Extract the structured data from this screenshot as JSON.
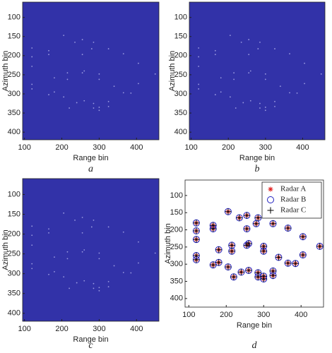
{
  "chart_data": [
    {
      "type": "image",
      "caption": "a",
      "xlabel": "Range bin",
      "ylabel": "Azimuth bin",
      "xlim": [
        95,
        460
      ],
      "ylim": [
        60,
        420
      ],
      "y_inverted": true,
      "xticks": [
        100,
        200,
        300,
        400
      ],
      "yticks": [
        100,
        150,
        200,
        250,
        300,
        350,
        400
      ],
      "background": "#3232a8",
      "color": "#9a9ae0",
      "x": [
        120,
        120,
        120,
        120,
        120,
        165,
        165,
        165,
        180,
        180,
        205,
        205,
        215,
        215,
        220,
        235,
        240,
        255,
        255,
        255,
        260,
        260,
        280,
        285,
        285,
        285,
        300,
        300,
        300,
        300,
        325,
        325,
        325,
        340,
        365,
        365,
        385,
        405,
        405,
        450
      ],
      "values": [
        180,
        203,
        228,
        275,
        287,
        187,
        197,
        302,
        258,
        295,
        147,
        308,
        245,
        262,
        337,
        165,
        323,
        158,
        197,
        245,
        240,
        318,
        182,
        165,
        325,
        337,
        248,
        262,
        335,
        343,
        182,
        320,
        333,
        280,
        195,
        297,
        298,
        220,
        273,
        248
      ]
    },
    {
      "type": "image",
      "caption": "b",
      "xlabel": "Range bin",
      "ylabel": "Azimuth bin",
      "xlim": [
        95,
        460
      ],
      "ylim": [
        60,
        420
      ],
      "y_inverted": true,
      "xticks": [
        100,
        200,
        300,
        400
      ],
      "yticks": [
        100,
        150,
        200,
        250,
        300,
        350,
        400
      ],
      "background": "#3232a8",
      "color": "#9a9ae0",
      "x": [
        120,
        120,
        120,
        120,
        120,
        165,
        165,
        165,
        180,
        180,
        205,
        205,
        215,
        215,
        220,
        235,
        240,
        255,
        255,
        255,
        260,
        260,
        280,
        285,
        285,
        285,
        300,
        300,
        300,
        300,
        325,
        325,
        325,
        340,
        365,
        365,
        385,
        405,
        405,
        450
      ],
      "values": [
        180,
        203,
        228,
        275,
        287,
        187,
        197,
        302,
        258,
        295,
        147,
        308,
        245,
        262,
        337,
        165,
        323,
        158,
        197,
        245,
        240,
        318,
        182,
        165,
        325,
        337,
        248,
        262,
        335,
        343,
        182,
        320,
        333,
        280,
        195,
        297,
        298,
        220,
        273,
        248
      ]
    },
    {
      "type": "image",
      "caption": "c",
      "xlabel": "Range bin",
      "ylabel": "Azimuth bin",
      "xlim": [
        95,
        460
      ],
      "ylim": [
        60,
        420
      ],
      "y_inverted": true,
      "xticks": [
        100,
        200,
        300,
        400
      ],
      "yticks": [
        100,
        150,
        200,
        250,
        300,
        350,
        400
      ],
      "background": "#3232a8",
      "color": "#9a9ae0",
      "x": [
        120,
        120,
        120,
        120,
        120,
        165,
        165,
        165,
        180,
        180,
        205,
        205,
        215,
        215,
        220,
        235,
        240,
        255,
        255,
        255,
        260,
        260,
        280,
        285,
        285,
        285,
        300,
        300,
        300,
        300,
        325,
        325,
        325,
        340,
        365,
        365,
        385,
        405,
        405,
        450
      ],
      "values": [
        180,
        203,
        228,
        275,
        287,
        187,
        197,
        302,
        258,
        295,
        147,
        308,
        245,
        262,
        337,
        165,
        323,
        158,
        197,
        245,
        240,
        318,
        182,
        165,
        325,
        337,
        248,
        262,
        335,
        343,
        182,
        320,
        333,
        280,
        195,
        297,
        298,
        220,
        273,
        248
      ]
    },
    {
      "type": "scatter",
      "caption": "d",
      "xlabel": "Range bin",
      "ylabel": "Azimuth bin",
      "xlim": [
        90,
        460
      ],
      "ylim": [
        55,
        425
      ],
      "y_inverted": true,
      "xticks": [
        100,
        200,
        300,
        400
      ],
      "yticks": [
        100,
        150,
        200,
        250,
        300,
        350,
        400
      ],
      "legend": "upper right",
      "x": [
        120,
        120,
        120,
        120,
        120,
        165,
        165,
        165,
        180,
        180,
        205,
        205,
        215,
        215,
        220,
        235,
        240,
        255,
        255,
        255,
        260,
        260,
        280,
        285,
        285,
        285,
        300,
        300,
        300,
        300,
        325,
        325,
        325,
        340,
        365,
        365,
        385,
        405,
        405,
        450
      ],
      "series": [
        {
          "name": "Radar A",
          "color": "#e02020",
          "marker": "asterisk",
          "values": [
            180,
            203,
            228,
            275,
            287,
            187,
            197,
            302,
            258,
            295,
            147,
            308,
            245,
            262,
            337,
            165,
            323,
            158,
            197,
            245,
            240,
            318,
            182,
            165,
            325,
            337,
            248,
            262,
            335,
            343,
            182,
            320,
            333,
            280,
            195,
            297,
            298,
            220,
            273,
            248
          ]
        },
        {
          "name": "Radar B",
          "color": "#2020c0",
          "marker": "circle",
          "values": [
            180,
            203,
            228,
            275,
            287,
            187,
            197,
            302,
            258,
            295,
            147,
            308,
            245,
            262,
            337,
            165,
            323,
            158,
            197,
            245,
            240,
            318,
            182,
            165,
            325,
            337,
            248,
            262,
            335,
            343,
            182,
            320,
            333,
            280,
            195,
            297,
            298,
            220,
            273,
            248
          ]
        },
        {
          "name": "Radar C",
          "color": "#000000",
          "marker": "plus",
          "values": [
            180,
            203,
            228,
            275,
            287,
            187,
            197,
            302,
            258,
            295,
            147,
            308,
            245,
            262,
            337,
            165,
            323,
            158,
            197,
            245,
            240,
            318,
            182,
            165,
            325,
            337,
            248,
            262,
            335,
            343,
            182,
            320,
            333,
            280,
            195,
            297,
            298,
            220,
            273,
            248
          ]
        }
      ]
    }
  ]
}
